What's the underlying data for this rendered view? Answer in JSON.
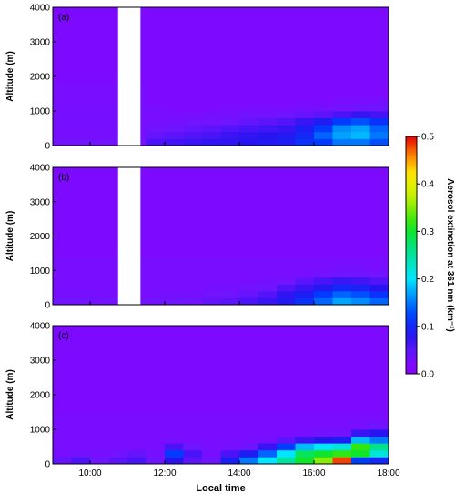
{
  "chart_data": {
    "type": "heatmap",
    "colormap": "rainbow (purple-blue-cyan-green-yellow-red)",
    "xlabel": "Local time",
    "ylabel": "Altitude (m)",
    "x_range": [
      "09:00",
      "18:00"
    ],
    "x_ticks": [
      "10:00",
      "12:00",
      "14:00",
      "16:00",
      "18:00"
    ],
    "y_range": [
      0,
      4000
    ],
    "y_ticks": [
      "0",
      "1000",
      "2000",
      "3000",
      "4000"
    ],
    "colorbar": {
      "label": "Aerosol extinction at 361 nm (km⁻¹)",
      "range": [
        0.0,
        0.5
      ],
      "ticks": [
        "0.0",
        "0.1",
        "0.2",
        "0.3",
        "0.4",
        "0.5"
      ]
    },
    "x_hours": [
      9.0,
      9.5,
      10.0,
      10.5,
      11.0,
      11.5,
      12.0,
      12.5,
      13.0,
      13.5,
      14.0,
      14.5,
      15.0,
      15.5,
      16.0,
      16.5,
      17.0,
      17.5,
      18.0
    ],
    "altitudes_m": [
      0,
      200,
      400,
      600,
      800,
      1000,
      1200,
      1400,
      1600,
      1800,
      2000,
      2200,
      2400,
      2600,
      2800,
      3000,
      3200,
      3400,
      3600,
      3800,
      4000
    ],
    "panels": [
      {
        "label": "(a)",
        "gap_hours": [
          10.75,
          11.35
        ],
        "columns": [
          [
            0.035,
            0.03,
            0.03,
            0.03,
            0.03,
            0.03,
            0.025,
            0.025,
            0.025,
            0.02
          ],
          [
            0.035,
            0.03,
            0.03,
            0.03,
            0.03,
            0.03,
            0.025,
            0.025,
            0.025,
            0.02
          ],
          [
            0.035,
            0.03,
            0.03,
            0.03,
            0.03,
            0.03,
            0.025,
            0.025,
            0.025,
            0.02
          ],
          [
            0.035,
            0.03,
            0.03,
            0.03,
            0.03,
            0.03,
            0.025,
            0.025,
            0.025,
            0.02
          ],
          [
            0.035,
            0.03,
            0.03,
            0.03,
            0.03,
            0.03,
            0.025,
            0.025,
            0.025,
            0.02
          ],
          [
            0.06,
            0.045,
            0.035,
            0.03,
            0.025,
            0.025,
            0.02,
            0.02,
            0.02,
            0.02
          ],
          [
            0.065,
            0.05,
            0.04,
            0.03,
            0.025,
            0.02,
            0.02,
            0.02,
            0.02,
            0.02
          ],
          [
            0.07,
            0.055,
            0.045,
            0.035,
            0.025,
            0.02,
            0.02,
            0.02,
            0.02,
            0.02
          ],
          [
            0.075,
            0.06,
            0.05,
            0.035,
            0.03,
            0.02,
            0.02,
            0.02,
            0.02,
            0.02
          ],
          [
            0.075,
            0.07,
            0.055,
            0.04,
            0.03,
            0.025,
            0.02,
            0.02,
            0.02,
            0.02
          ],
          [
            0.08,
            0.075,
            0.06,
            0.045,
            0.035,
            0.025,
            0.02,
            0.02,
            0.02,
            0.02
          ],
          [
            0.085,
            0.08,
            0.065,
            0.05,
            0.035,
            0.025,
            0.02,
            0.02,
            0.02,
            0.02
          ],
          [
            0.09,
            0.085,
            0.07,
            0.055,
            0.04,
            0.025,
            0.02,
            0.02,
            0.02,
            0.02
          ],
          [
            0.11,
            0.1,
            0.09,
            0.07,
            0.045,
            0.03,
            0.02,
            0.02,
            0.02,
            0.02
          ],
          [
            0.12,
            0.14,
            0.12,
            0.09,
            0.05,
            0.03,
            0.02,
            0.02,
            0.02,
            0.02
          ],
          [
            0.15,
            0.17,
            0.16,
            0.12,
            0.06,
            0.035,
            0.025,
            0.02,
            0.02,
            0.02
          ],
          [
            0.15,
            0.18,
            0.17,
            0.13,
            0.07,
            0.04,
            0.025,
            0.02,
            0.02,
            0.02
          ],
          [
            0.13,
            0.15,
            0.14,
            0.11,
            0.065,
            0.04,
            0.03,
            0.02,
            0.02,
            0.02
          ]
        ]
      },
      {
        "label": "(b)",
        "gap_hours": [
          10.75,
          11.35
        ],
        "columns": [
          [
            0.035,
            0.03,
            0.025,
            0.025,
            0.025,
            0.025,
            0.025,
            0.02,
            0.02,
            0.02
          ],
          [
            0.035,
            0.03,
            0.025,
            0.025,
            0.025,
            0.025,
            0.025,
            0.02,
            0.02,
            0.02
          ],
          [
            0.035,
            0.03,
            0.025,
            0.025,
            0.025,
            0.025,
            0.025,
            0.02,
            0.02,
            0.02
          ],
          [
            0.035,
            0.03,
            0.025,
            0.025,
            0.025,
            0.025,
            0.025,
            0.02,
            0.02,
            0.02
          ],
          [
            0.035,
            0.03,
            0.025,
            0.025,
            0.025,
            0.025,
            0.025,
            0.02,
            0.02,
            0.02
          ],
          [
            0.035,
            0.03,
            0.025,
            0.025,
            0.025,
            0.025,
            0.025,
            0.02,
            0.02,
            0.02
          ],
          [
            0.04,
            0.03,
            0.025,
            0.025,
            0.025,
            0.025,
            0.025,
            0.02,
            0.02,
            0.02
          ],
          [
            0.04,
            0.03,
            0.025,
            0.025,
            0.025,
            0.025,
            0.025,
            0.02,
            0.02,
            0.02
          ],
          [
            0.045,
            0.035,
            0.03,
            0.025,
            0.025,
            0.025,
            0.025,
            0.02,
            0.02,
            0.02
          ],
          [
            0.05,
            0.04,
            0.03,
            0.025,
            0.025,
            0.025,
            0.025,
            0.02,
            0.02,
            0.02
          ],
          [
            0.06,
            0.045,
            0.035,
            0.025,
            0.025,
            0.025,
            0.025,
            0.02,
            0.02,
            0.02
          ],
          [
            0.07,
            0.055,
            0.04,
            0.03,
            0.025,
            0.025,
            0.025,
            0.02,
            0.02,
            0.02
          ],
          [
            0.085,
            0.075,
            0.055,
            0.035,
            0.025,
            0.025,
            0.025,
            0.02,
            0.02,
            0.02
          ],
          [
            0.11,
            0.09,
            0.07,
            0.05,
            0.03,
            0.025,
            0.025,
            0.02,
            0.02,
            0.02
          ],
          [
            0.14,
            0.12,
            0.085,
            0.06,
            0.035,
            0.025,
            0.025,
            0.02,
            0.02,
            0.02
          ],
          [
            0.17,
            0.14,
            0.1,
            0.07,
            0.04,
            0.03,
            0.025,
            0.02,
            0.02,
            0.02
          ],
          [
            0.16,
            0.13,
            0.095,
            0.065,
            0.04,
            0.03,
            0.025,
            0.02,
            0.02,
            0.02
          ],
          [
            0.14,
            0.11,
            0.08,
            0.055,
            0.035,
            0.025,
            0.025,
            0.02,
            0.02,
            0.02
          ]
        ]
      },
      {
        "label": "(c)",
        "gap_hours": null,
        "columns": [
          [
            0.045,
            0.03,
            0.025,
            0.025,
            0.025,
            0.025,
            0.025,
            0.02,
            0.02,
            0.02
          ],
          [
            0.06,
            0.035,
            0.025,
            0.025,
            0.025,
            0.025,
            0.025,
            0.02,
            0.02,
            0.02
          ],
          [
            0.04,
            0.03,
            0.025,
            0.025,
            0.025,
            0.025,
            0.025,
            0.02,
            0.02,
            0.02
          ],
          [
            0.05,
            0.035,
            0.025,
            0.025,
            0.025,
            0.025,
            0.025,
            0.02,
            0.02,
            0.02
          ],
          [
            0.06,
            0.045,
            0.025,
            0.025,
            0.025,
            0.025,
            0.025,
            0.02,
            0.02,
            0.02
          ],
          [
            0.04,
            0.03,
            0.025,
            0.025,
            0.025,
            0.025,
            0.025,
            0.02,
            0.02,
            0.02
          ],
          [
            0.08,
            0.12,
            0.06,
            0.025,
            0.025,
            0.025,
            0.025,
            0.02,
            0.02,
            0.02
          ],
          [
            0.05,
            0.06,
            0.04,
            0.025,
            0.025,
            0.025,
            0.025,
            0.02,
            0.02,
            0.02
          ],
          [
            0.04,
            0.03,
            0.025,
            0.025,
            0.025,
            0.025,
            0.025,
            0.02,
            0.02,
            0.02
          ],
          [
            0.09,
            0.06,
            0.03,
            0.025,
            0.025,
            0.025,
            0.025,
            0.02,
            0.02,
            0.02
          ],
          [
            0.15,
            0.09,
            0.04,
            0.025,
            0.025,
            0.025,
            0.025,
            0.02,
            0.02,
            0.02
          ],
          [
            0.2,
            0.14,
            0.07,
            0.03,
            0.025,
            0.025,
            0.025,
            0.02,
            0.02,
            0.02
          ],
          [
            0.25,
            0.2,
            0.12,
            0.05,
            0.025,
            0.025,
            0.025,
            0.02,
            0.02,
            0.02
          ],
          [
            0.3,
            0.28,
            0.18,
            0.07,
            0.03,
            0.025,
            0.025,
            0.02,
            0.02,
            0.02
          ],
          [
            0.35,
            0.3,
            0.2,
            0.08,
            0.035,
            0.025,
            0.025,
            0.02,
            0.02,
            0.02
          ],
          [
            0.48,
            0.32,
            0.22,
            0.09,
            0.035,
            0.025,
            0.025,
            0.02,
            0.02,
            0.02
          ],
          [
            0.12,
            0.3,
            0.32,
            0.18,
            0.07,
            0.03,
            0.025,
            0.02,
            0.02,
            0.02
          ],
          [
            0.1,
            0.22,
            0.26,
            0.15,
            0.08,
            0.04,
            0.025,
            0.02,
            0.02,
            0.02
          ]
        ]
      }
    ]
  }
}
